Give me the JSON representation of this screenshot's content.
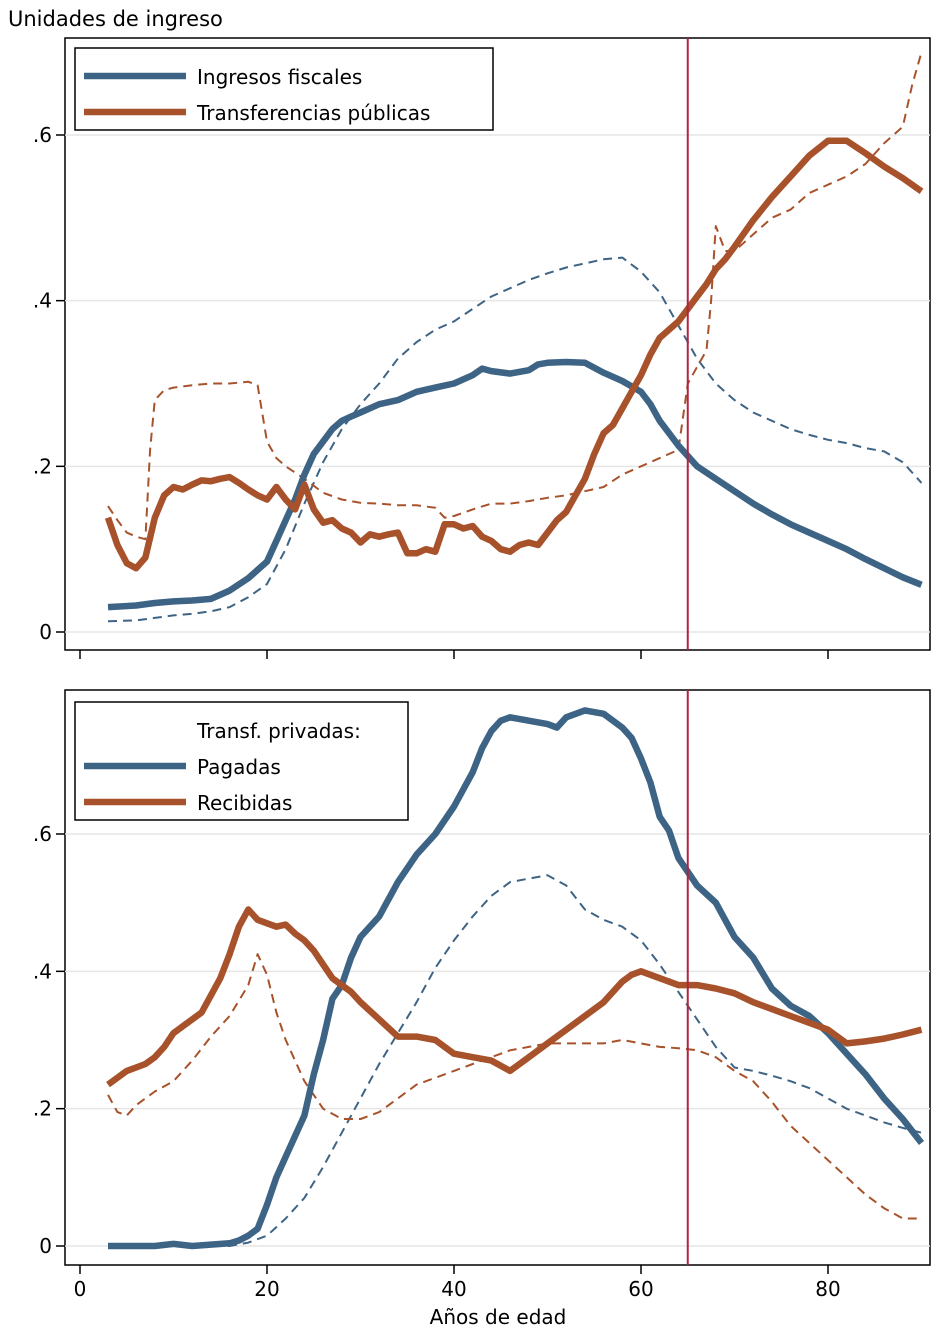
{
  "chart_data": [
    {
      "type": "line",
      "ylabel": "Unidades de ingreso",
      "xlabel": "",
      "xlim": [
        0,
        90
      ],
      "ylim": [
        0,
        0.7
      ],
      "yticks": [
        {
          "value": 0,
          "label": "0"
        },
        {
          "value": 0.2,
          "label": ".2"
        },
        {
          "value": 0.4,
          "label": ".4"
        },
        {
          "value": 0.6,
          "label": ".6"
        }
      ],
      "xticks": [
        {
          "value": 0,
          "label": ""
        },
        {
          "value": 20,
          "label": ""
        },
        {
          "value": 40,
          "label": ""
        },
        {
          "value": 60,
          "label": ""
        },
        {
          "value": 80,
          "label": ""
        }
      ],
      "vline": 65,
      "vline_color": "#b0243e",
      "grid": true,
      "legend_position": "top-left",
      "legend_title": "",
      "series": [
        {
          "name": "Ingresos fiscales",
          "style": "solid",
          "color": "#3e6485",
          "x": [
            3,
            6,
            8,
            10,
            12,
            14,
            16,
            18,
            20,
            21,
            22,
            23,
            24,
            25,
            26,
            27,
            28,
            29,
            30,
            32,
            34,
            36,
            38,
            40,
            42,
            43,
            44,
            46,
            48,
            49,
            50,
            52,
            54,
            56,
            58,
            60,
            61,
            62,
            64,
            66,
            68,
            70,
            72,
            74,
            76,
            78,
            80,
            82,
            84,
            86,
            88,
            90
          ],
          "values": [
            0.03,
            0.032,
            0.035,
            0.037,
            0.038,
            0.04,
            0.05,
            0.065,
            0.085,
            0.11,
            0.135,
            0.16,
            0.19,
            0.215,
            0.23,
            0.245,
            0.255,
            0.26,
            0.265,
            0.275,
            0.28,
            0.29,
            0.295,
            0.3,
            0.31,
            0.318,
            0.315,
            0.312,
            0.316,
            0.323,
            0.325,
            0.326,
            0.325,
            0.313,
            0.303,
            0.29,
            0.275,
            0.255,
            0.225,
            0.2,
            0.185,
            0.17,
            0.155,
            0.142,
            0.13,
            0.12,
            0.11,
            0.1,
            0.088,
            0.077,
            0.066,
            0.057
          ]
        },
        {
          "name": "Transferencias públicas",
          "style": "solid",
          "color": "#a8522c",
          "x": [
            3,
            4,
            5,
            6,
            7,
            8,
            9,
            10,
            11,
            12,
            13,
            14,
            15,
            16,
            17,
            18,
            19,
            20,
            21,
            22,
            23,
            24,
            25,
            26,
            27,
            28,
            29,
            30,
            31,
            32,
            33,
            34,
            35,
            36,
            37,
            38,
            39,
            40,
            41,
            42,
            43,
            44,
            45,
            46,
            47,
            48,
            49,
            50,
            51,
            52,
            53,
            54,
            55,
            56,
            57,
            58,
            59,
            60,
            61,
            62,
            63,
            64,
            65,
            66,
            67,
            68,
            69,
            70,
            72,
            74,
            76,
            78,
            80,
            82,
            84,
            86,
            88,
            90
          ],
          "values": [
            0.138,
            0.105,
            0.083,
            0.077,
            0.09,
            0.138,
            0.165,
            0.175,
            0.172,
            0.178,
            0.183,
            0.182,
            0.185,
            0.187,
            0.18,
            0.172,
            0.165,
            0.16,
            0.175,
            0.16,
            0.148,
            0.178,
            0.148,
            0.132,
            0.135,
            0.125,
            0.12,
            0.108,
            0.118,
            0.115,
            0.118,
            0.12,
            0.095,
            0.095,
            0.1,
            0.097,
            0.13,
            0.13,
            0.125,
            0.128,
            0.115,
            0.11,
            0.1,
            0.097,
            0.105,
            0.108,
            0.105,
            0.12,
            0.135,
            0.145,
            0.165,
            0.185,
            0.215,
            0.24,
            0.25,
            0.27,
            0.29,
            0.31,
            0.335,
            0.355,
            0.365,
            0.375,
            0.39,
            0.405,
            0.42,
            0.438,
            0.45,
            0.465,
            0.497,
            0.525,
            0.55,
            0.575,
            0.593,
            0.593,
            0.578,
            0.562,
            0.548,
            0.532
          ]
        },
        {
          "name": "",
          "style": "dashed",
          "color": "#3e6485",
          "x": [
            3,
            6,
            8,
            10,
            12,
            14,
            16,
            18,
            20,
            22,
            24,
            26,
            28,
            30,
            32,
            34,
            36,
            38,
            40,
            42,
            44,
            46,
            48,
            50,
            52,
            54,
            56,
            58,
            60,
            62,
            64,
            66,
            68,
            70,
            72,
            74,
            76,
            78,
            80,
            82,
            84,
            86,
            88,
            90
          ],
          "values": [
            0.013,
            0.014,
            0.017,
            0.02,
            0.022,
            0.025,
            0.03,
            0.042,
            0.058,
            0.1,
            0.155,
            0.205,
            0.245,
            0.275,
            0.3,
            0.33,
            0.35,
            0.365,
            0.375,
            0.39,
            0.405,
            0.415,
            0.425,
            0.433,
            0.44,
            0.445,
            0.45,
            0.452,
            0.435,
            0.41,
            0.37,
            0.33,
            0.3,
            0.28,
            0.265,
            0.255,
            0.245,
            0.238,
            0.232,
            0.228,
            0.222,
            0.218,
            0.205,
            0.18
          ]
        },
        {
          "name": "",
          "style": "dashed",
          "color": "#a8522c",
          "x": [
            3,
            4,
            5,
            6,
            7,
            7.5,
            8,
            9,
            10,
            12,
            14,
            16,
            18,
            19,
            20,
            21,
            22,
            24,
            26,
            28,
            30,
            32,
            34,
            36,
            38,
            39,
            40,
            42,
            44,
            46,
            48,
            50,
            52,
            54,
            56,
            58,
            60,
            62,
            64,
            65,
            66,
            67,
            67.5,
            68,
            69,
            70,
            72,
            74,
            76,
            78,
            80,
            82,
            84,
            86,
            88,
            89,
            90
          ],
          "values": [
            0.152,
            0.135,
            0.12,
            0.115,
            0.112,
            0.22,
            0.28,
            0.292,
            0.295,
            0.298,
            0.3,
            0.3,
            0.302,
            0.298,
            0.23,
            0.21,
            0.2,
            0.185,
            0.168,
            0.16,
            0.156,
            0.155,
            0.153,
            0.153,
            0.15,
            0.138,
            0.14,
            0.148,
            0.155,
            0.155,
            0.158,
            0.162,
            0.165,
            0.17,
            0.175,
            0.19,
            0.2,
            0.21,
            0.22,
            0.3,
            0.32,
            0.34,
            0.4,
            0.49,
            0.46,
            0.46,
            0.48,
            0.5,
            0.51,
            0.53,
            0.54,
            0.55,
            0.565,
            0.59,
            0.61,
            0.66,
            0.7
          ]
        }
      ]
    },
    {
      "type": "line",
      "ylabel": "",
      "xlabel": "Años de edad",
      "xlim": [
        0,
        90
      ],
      "ylim": [
        0,
        0.8
      ],
      "yticks": [
        {
          "value": 0,
          "label": "0"
        },
        {
          "value": 0.2,
          "label": ".2"
        },
        {
          "value": 0.4,
          "label": ".4"
        },
        {
          "value": 0.6,
          "label": ".6"
        }
      ],
      "xticks": [
        {
          "value": 0,
          "label": "0"
        },
        {
          "value": 20,
          "label": "20"
        },
        {
          "value": 40,
          "label": "40"
        },
        {
          "value": 60,
          "label": "60"
        },
        {
          "value": 80,
          "label": "80"
        }
      ],
      "vline": 65,
      "vline_color": "#b0243e",
      "grid": true,
      "legend_position": "top-left",
      "legend_title": "Transf. privadas:",
      "series": [
        {
          "name": "Pagadas",
          "style": "solid",
          "color": "#3e6485",
          "x": [
            3,
            6,
            8,
            10,
            12,
            14,
            16,
            17,
            18,
            19,
            20,
            21,
            22,
            24,
            25,
            26,
            27,
            28,
            29,
            30,
            32,
            34,
            35,
            36,
            38,
            40,
            42,
            43,
            44,
            45,
            46,
            48,
            50,
            51,
            52,
            54,
            56,
            58,
            59,
            60,
            61,
            62,
            63,
            64,
            66,
            68,
            70,
            72,
            74,
            76,
            78,
            80,
            82,
            84,
            86,
            88,
            90
          ],
          "values": [
            0,
            0,
            0,
            0.003,
            0,
            0.002,
            0.004,
            0.008,
            0.015,
            0.025,
            0.06,
            0.1,
            0.13,
            0.19,
            0.25,
            0.3,
            0.36,
            0.38,
            0.42,
            0.45,
            0.48,
            0.53,
            0.55,
            0.57,
            0.6,
            0.64,
            0.69,
            0.725,
            0.75,
            0.765,
            0.77,
            0.765,
            0.76,
            0.755,
            0.77,
            0.78,
            0.775,
            0.755,
            0.74,
            0.71,
            0.675,
            0.625,
            0.605,
            0.565,
            0.525,
            0.5,
            0.45,
            0.42,
            0.375,
            0.35,
            0.335,
            0.31,
            0.28,
            0.25,
            0.215,
            0.185,
            0.15
          ]
        },
        {
          "name": "Recibidas",
          "style": "solid",
          "color": "#a8522c",
          "x": [
            3,
            4,
            5,
            6,
            7,
            8,
            9,
            10,
            11,
            12,
            13,
            14,
            15,
            16,
            17,
            18,
            19,
            20,
            21,
            22,
            23,
            24,
            25,
            26,
            27,
            28,
            29,
            30,
            32,
            34,
            36,
            38,
            40,
            42,
            44,
            46,
            48,
            50,
            52,
            54,
            56,
            58,
            59,
            60,
            62,
            64,
            66,
            68,
            70,
            72,
            74,
            76,
            78,
            80,
            82,
            84,
            86,
            88,
            90
          ],
          "values": [
            0.235,
            0.245,
            0.255,
            0.26,
            0.265,
            0.275,
            0.29,
            0.31,
            0.32,
            0.33,
            0.34,
            0.365,
            0.39,
            0.425,
            0.465,
            0.49,
            0.475,
            0.47,
            0.465,
            0.468,
            0.455,
            0.445,
            0.43,
            0.41,
            0.39,
            0.38,
            0.37,
            0.355,
            0.33,
            0.305,
            0.305,
            0.3,
            0.28,
            0.275,
            0.27,
            0.255,
            0.275,
            0.295,
            0.315,
            0.335,
            0.355,
            0.385,
            0.395,
            0.4,
            0.39,
            0.38,
            0.38,
            0.375,
            0.368,
            0.355,
            0.345,
            0.335,
            0.325,
            0.315,
            0.295,
            0.298,
            0.302,
            0.308,
            0.315
          ]
        },
        {
          "name": "",
          "style": "dashed",
          "color": "#3e6485",
          "x": [
            3,
            6,
            8,
            10,
            12,
            14,
            16,
            18,
            20,
            22,
            24,
            26,
            28,
            30,
            32,
            34,
            36,
            38,
            40,
            42,
            44,
            46,
            48,
            50,
            52,
            54,
            56,
            58,
            60,
            62,
            64,
            66,
            68,
            70,
            72,
            74,
            76,
            78,
            80,
            82,
            84,
            86,
            88,
            90
          ],
          "values": [
            0,
            0,
            0,
            0,
            0,
            0,
            0,
            0.005,
            0.015,
            0.04,
            0.07,
            0.115,
            0.165,
            0.215,
            0.265,
            0.31,
            0.355,
            0.405,
            0.445,
            0.48,
            0.51,
            0.53,
            0.535,
            0.54,
            0.525,
            0.49,
            0.475,
            0.465,
            0.445,
            0.41,
            0.37,
            0.33,
            0.29,
            0.26,
            0.255,
            0.248,
            0.24,
            0.23,
            0.215,
            0.2,
            0.19,
            0.18,
            0.172,
            0.165
          ]
        },
        {
          "name": "",
          "style": "dashed",
          "color": "#a8522c",
          "x": [
            3,
            4,
            5,
            6,
            8,
            10,
            12,
            14,
            16,
            18,
            19,
            20,
            21,
            22,
            24,
            26,
            28,
            30,
            32,
            34,
            36,
            38,
            40,
            42,
            44,
            46,
            48,
            50,
            52,
            54,
            56,
            58,
            60,
            62,
            64,
            66,
            68,
            70,
            72,
            74,
            76,
            78,
            80,
            82,
            84,
            86,
            88,
            90
          ],
          "values": [
            0.22,
            0.195,
            0.19,
            0.205,
            0.225,
            0.24,
            0.27,
            0.305,
            0.335,
            0.38,
            0.425,
            0.395,
            0.34,
            0.3,
            0.24,
            0.2,
            0.185,
            0.185,
            0.195,
            0.215,
            0.235,
            0.245,
            0.255,
            0.265,
            0.275,
            0.285,
            0.29,
            0.295,
            0.295,
            0.295,
            0.295,
            0.3,
            0.295,
            0.29,
            0.288,
            0.285,
            0.275,
            0.255,
            0.24,
            0.21,
            0.175,
            0.15,
            0.125,
            0.1,
            0.075,
            0.055,
            0.04,
            0.04
          ]
        }
      ]
    }
  ]
}
